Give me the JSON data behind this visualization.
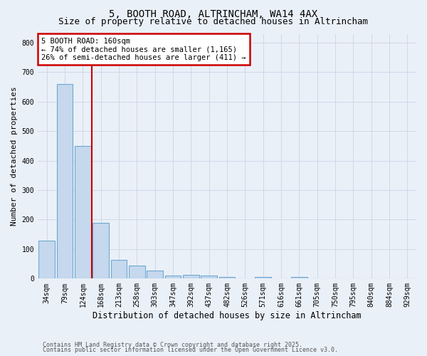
{
  "title1": "5, BOOTH ROAD, ALTRINCHAM, WA14 4AX",
  "title2": "Size of property relative to detached houses in Altrincham",
  "xlabel": "Distribution of detached houses by size in Altrincham",
  "ylabel": "Number of detached properties",
  "categories": [
    "34sqm",
    "79sqm",
    "124sqm",
    "168sqm",
    "213sqm",
    "258sqm",
    "303sqm",
    "347sqm",
    "392sqm",
    "437sqm",
    "482sqm",
    "526sqm",
    "571sqm",
    "616sqm",
    "661sqm",
    "705sqm",
    "750sqm",
    "795sqm",
    "840sqm",
    "884sqm",
    "929sqm"
  ],
  "values": [
    128,
    660,
    450,
    190,
    63,
    45,
    27,
    10,
    13,
    10,
    5,
    0,
    6,
    0,
    5,
    0,
    0,
    0,
    0,
    0,
    0
  ],
  "bar_color": "#c5d8ed",
  "bar_edge_color": "#6fa8d0",
  "bar_linewidth": 0.8,
  "grid_color": "#d0d8e8",
  "background_color": "#eaf0f8",
  "red_line_index": 2.5,
  "red_line_color": "#cc0000",
  "annotation_text": "5 BOOTH ROAD: 160sqm\n← 74% of detached houses are smaller (1,165)\n26% of semi-detached houses are larger (411) →",
  "annotation_box_color": "#ffffff",
  "annotation_border_color": "#cc0000",
  "ylim": [
    0,
    830
  ],
  "yticks": [
    0,
    100,
    200,
    300,
    400,
    500,
    600,
    700,
    800
  ],
  "footnote1": "Contains HM Land Registry data © Crown copyright and database right 2025.",
  "footnote2": "Contains public sector information licensed under the Open Government Licence v3.0.",
  "title1_fontsize": 10,
  "title2_fontsize": 9,
  "xlabel_fontsize": 8.5,
  "ylabel_fontsize": 8,
  "tick_fontsize": 7,
  "annotation_fontsize": 7.5,
  "footnote_fontsize": 6
}
